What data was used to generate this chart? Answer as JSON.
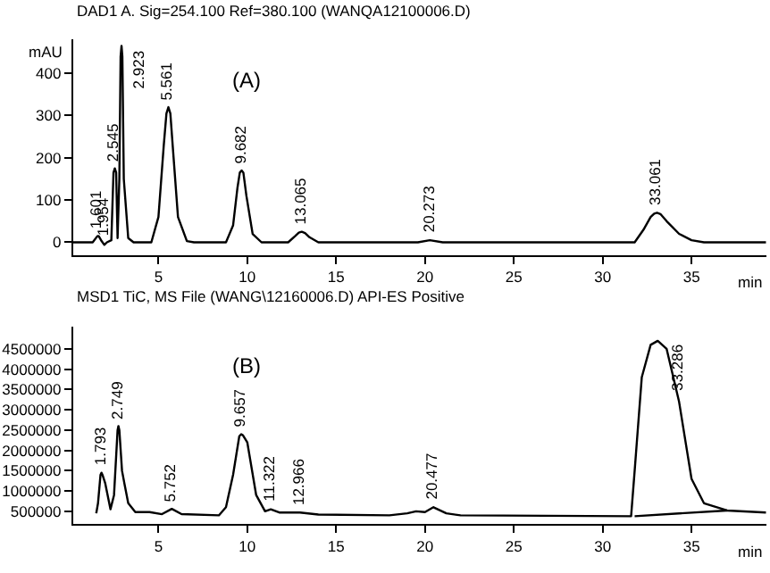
{
  "chart_data": [
    {
      "type": "line",
      "title": "DAD1 A. Sig=254.100 Ref=380.100 (WANQA12100006.D)",
      "xlabel": "min",
      "ylabel": "mAU",
      "xlim": [
        0.2,
        39.2
      ],
      "ylim": [
        -30,
        480
      ],
      "xticks": [
        5,
        10,
        15,
        20,
        25,
        30,
        35
      ],
      "yticks": [
        0,
        100,
        200,
        300,
        400
      ],
      "marker": "none",
      "line_style": "solid",
      "series": [
        {
          "color": "#000000",
          "x": [
            0.2,
            1.3,
            1.55,
            1.601,
            1.65,
            1.8,
            1.954,
            2.1,
            2.35,
            2.47,
            2.545,
            2.62,
            2.7,
            2.8,
            2.87,
            2.923,
            2.97,
            3.05,
            3.3,
            3.6,
            4.6,
            5.0,
            5.3,
            5.45,
            5.561,
            5.67,
            5.8,
            6.1,
            6.6,
            7.0,
            8.8,
            9.2,
            9.45,
            9.58,
            9.682,
            9.78,
            9.95,
            10.3,
            10.8,
            12.3,
            12.7,
            12.9,
            13.065,
            13.25,
            13.5,
            14.0,
            19.6,
            20.273,
            21.0,
            31.8,
            32.3,
            32.7,
            32.9,
            33.061,
            33.25,
            33.6,
            34.3,
            35.0,
            35.7,
            39.2
          ],
          "values": [
            0,
            0,
            14,
            15,
            14,
            3,
            -6,
            0,
            5,
            165,
            175,
            165,
            10,
            150,
            440,
            465,
            440,
            150,
            10,
            0,
            0,
            60,
            230,
            305,
            320,
            305,
            230,
            60,
            3,
            0,
            0,
            40,
            130,
            165,
            170,
            165,
            110,
            20,
            0,
            0,
            15,
            23,
            25,
            22,
            12,
            0,
            0,
            5,
            0,
            0,
            30,
            60,
            68,
            70,
            67,
            50,
            20,
            5,
            0,
            0
          ]
        }
      ],
      "annotations": [
        "(A)",
        {
          "text": "1.601",
          "x": 1.601,
          "y": 15
        },
        {
          "text": "1.954",
          "x": 1.954,
          "y": 0
        },
        {
          "text": "2.545",
          "x": 2.545,
          "y": 175
        },
        {
          "text": "2.923",
          "x": 2.923,
          "y": 465
        },
        {
          "text": "5.561",
          "x": 5.561,
          "y": 320
        },
        {
          "text": "9.682",
          "x": 9.682,
          "y": 170
        },
        {
          "text": "13.065",
          "x": 13.065,
          "y": 25
        },
        {
          "text": "20.273",
          "x": 20.273,
          "y": 5
        },
        {
          "text": "33.061",
          "x": 33.061,
          "y": 70
        }
      ]
    },
    {
      "type": "line",
      "title": "MSD1 TiC, MS File (WANG\\12160006.D) API-ES Positive",
      "xlabel": "min",
      "xlim": [
        0.2,
        39.2
      ],
      "ylim": [
        180000,
        5050000
      ],
      "xticks": [
        5,
        10,
        15,
        20,
        25,
        30,
        35
      ],
      "yticks": [
        500000,
        1000000,
        1500000,
        2000000,
        2500000,
        3000000,
        3500000,
        4000000,
        4500000
      ],
      "marker": "none",
      "line_style": "solid",
      "series": [
        {
          "color": "#000000",
          "x": [
            1.5,
            1.6,
            1.74,
            1.793,
            1.85,
            2.0,
            2.3,
            2.5,
            2.7,
            2.749,
            2.8,
            2.95,
            3.1,
            3.3,
            3.7,
            4.5,
            5.2,
            5.752,
            6.3,
            8.4,
            8.8,
            9.2,
            9.55,
            9.657,
            9.76,
            10.0,
            10.5,
            11.0,
            11.322,
            11.8,
            12.966,
            14.0,
            18.0,
            19.0,
            19.5,
            20.0,
            20.477,
            21.2,
            22.0,
            31.6,
            31.8,
            32.2,
            32.7,
            33.1,
            33.6,
            34.3,
            35.0,
            35.7,
            37.0,
            39.2
          ],
          "values": [
            450000,
            700000,
            1400000,
            1450000,
            1400000,
            1200000,
            550000,
            900000,
            2500000,
            2600000,
            2500000,
            1500000,
            1150000,
            700000,
            480000,
            480000,
            430000,
            560000,
            430000,
            400000,
            600000,
            1400000,
            2350000,
            2400000,
            2370000,
            2200000,
            900000,
            500000,
            550000,
            470000,
            470000,
            420000,
            400000,
            450000,
            500000,
            480000,
            600000,
            450000,
            400000,
            380000,
            1500000,
            3800000,
            4600000,
            4700000,
            4500000,
            3200000,
            1300000,
            700000,
            520000,
            470000
          ]
        },
        {
          "color": "#000000",
          "x": [
            31.8,
            37.0
          ],
          "values": [
            380000,
            520000
          ]
        }
      ],
      "annotations": [
        "(B)",
        {
          "text": "1.793",
          "x": 1.793,
          "y": 1450000
        },
        {
          "text": "2.749",
          "x": 2.749,
          "y": 2600000
        },
        {
          "text": "5.752",
          "x": 5.752,
          "y": 560000
        },
        {
          "text": "9.657",
          "x": 9.657,
          "y": 2400000
        },
        {
          "text": "11.322",
          "x": 11.322,
          "y": 550000
        },
        {
          "text": "12.966",
          "x": 12.966,
          "y": 470000
        },
        {
          "text": "20.477",
          "x": 20.477,
          "y": 600000
        },
        {
          "text": "33.286",
          "x": 33.286,
          "y": 4700000
        }
      ]
    }
  ]
}
